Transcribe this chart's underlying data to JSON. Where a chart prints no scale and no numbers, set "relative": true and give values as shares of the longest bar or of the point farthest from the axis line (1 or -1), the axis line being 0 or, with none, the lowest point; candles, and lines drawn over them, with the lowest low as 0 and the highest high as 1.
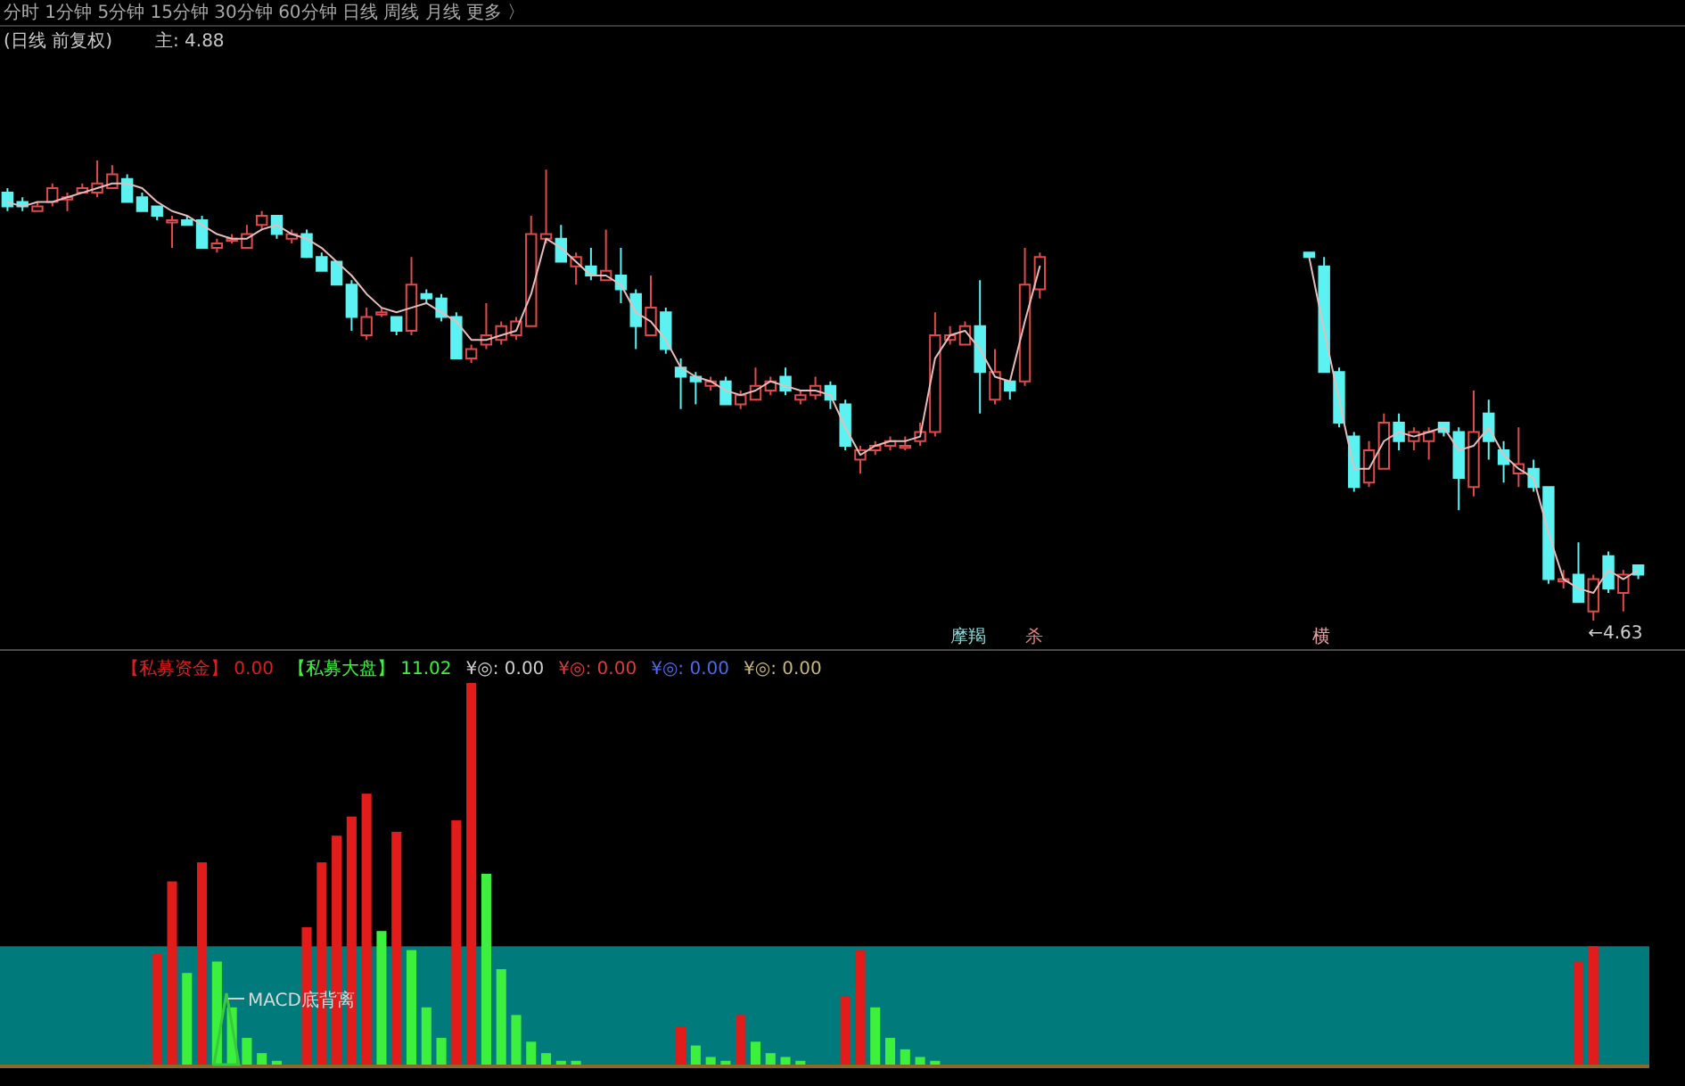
{
  "chart_data": [
    {
      "type": "candlestick",
      "title": "(日线 前复权)",
      "relative": true,
      "categories": [
        null,
        null,
        null,
        null,
        null,
        null,
        null,
        null,
        null,
        null,
        null,
        null,
        null,
        null,
        null,
        null,
        null,
        null,
        null,
        null,
        null,
        null,
        null,
        null,
        null,
        null,
        null,
        null,
        null,
        null,
        null,
        null,
        null,
        null,
        null,
        null,
        null,
        null,
        null,
        null,
        null,
        null,
        null,
        null,
        null,
        null,
        null,
        null,
        null,
        null,
        null,
        null,
        null,
        null,
        null,
        null,
        null,
        null,
        null,
        null,
        null,
        null,
        null,
        null,
        null,
        null,
        null,
        null,
        null,
        null,
        null,
        null,
        null,
        null,
        null,
        null,
        null,
        null,
        null,
        null,
        null,
        null,
        null,
        null,
        null,
        null,
        null,
        null,
        null,
        null,
        null,
        null,
        null,
        null,
        null,
        null,
        null,
        null,
        null,
        null,
        null,
        null,
        null,
        null,
        null,
        null,
        null,
        null,
        null,
        null
      ],
      "ohlc": [
        [
          0.93,
          0.94,
          0.89,
          0.9
        ],
        [
          0.91,
          0.92,
          0.89,
          0.9
        ],
        [
          0.89,
          0.91,
          0.89,
          0.9
        ],
        [
          0.91,
          0.95,
          0.9,
          0.94
        ],
        [
          0.92,
          0.93,
          0.89,
          0.92
        ],
        [
          0.93,
          0.95,
          0.93,
          0.94
        ],
        [
          0.93,
          1,
          0.92,
          0.95
        ],
        [
          0.94,
          0.99,
          0.94,
          0.97
        ],
        [
          0.96,
          0.97,
          0.91,
          0.91
        ],
        [
          0.92,
          0.93,
          0.89,
          0.89
        ],
        [
          0.9,
          0.9,
          0.87,
          0.88
        ],
        [
          0.87,
          0.88,
          0.81,
          0.87
        ],
        [
          0.87,
          0.88,
          0.86,
          0.86
        ],
        [
          0.87,
          0.88,
          0.81,
          0.81
        ],
        [
          0.81,
          0.83,
          0.8,
          0.82
        ],
        [
          0.83,
          0.84,
          0.82,
          0.83
        ],
        [
          0.81,
          0.86,
          0.81,
          0.84
        ],
        [
          0.86,
          0.89,
          0.85,
          0.88
        ],
        [
          0.88,
          0.88,
          0.83,
          0.84
        ],
        [
          0.83,
          0.85,
          0.82,
          0.84
        ],
        [
          0.84,
          0.85,
          0.79,
          0.79
        ],
        [
          0.79,
          0.8,
          0.76,
          0.76
        ],
        [
          0.78,
          0.78,
          0.73,
          0.73
        ],
        [
          0.73,
          0.74,
          0.63,
          0.66
        ],
        [
          0.62,
          0.68,
          0.61,
          0.66
        ],
        [
          0.67,
          0.68,
          0.66,
          0.67
        ],
        [
          0.66,
          0.66,
          0.62,
          0.63
        ],
        [
          0.63,
          0.79,
          0.62,
          0.73
        ],
        [
          0.71,
          0.72,
          0.69,
          0.7
        ],
        [
          0.7,
          0.71,
          0.65,
          0.66
        ],
        [
          0.66,
          0.67,
          0.57,
          0.57
        ],
        [
          0.57,
          0.6,
          0.56,
          0.59
        ],
        [
          0.6,
          0.69,
          0.59,
          0.62
        ],
        [
          0.61,
          0.65,
          0.6,
          0.64
        ],
        [
          0.62,
          0.66,
          0.61,
          0.65
        ],
        [
          0.64,
          0.88,
          0.64,
          0.84
        ],
        [
          0.83,
          0.98,
          0.82,
          0.84
        ],
        [
          0.83,
          0.86,
          0.78,
          0.78
        ],
        [
          0.77,
          0.8,
          0.73,
          0.79
        ],
        [
          0.77,
          0.81,
          0.74,
          0.75
        ],
        [
          0.74,
          0.85,
          0.74,
          0.76
        ],
        [
          0.75,
          0.81,
          0.69,
          0.72
        ],
        [
          0.71,
          0.72,
          0.59,
          0.64
        ],
        [
          0.62,
          0.75,
          0.62,
          0.68
        ],
        [
          0.67,
          0.68,
          0.58,
          0.59
        ],
        [
          0.55,
          0.57,
          0.46,
          0.53
        ],
        [
          0.53,
          0.54,
          0.47,
          0.52
        ],
        [
          0.51,
          0.53,
          0.5,
          0.52
        ],
        [
          0.52,
          0.53,
          0.47,
          0.47
        ],
        [
          0.47,
          0.5,
          0.46,
          0.49
        ],
        [
          0.48,
          0.55,
          0.48,
          0.51
        ],
        [
          0.5,
          0.53,
          0.49,
          0.52
        ],
        [
          0.53,
          0.55,
          0.49,
          0.5
        ],
        [
          0.48,
          0.5,
          0.47,
          0.49
        ],
        [
          0.49,
          0.53,
          0.48,
          0.51
        ],
        [
          0.51,
          0.52,
          0.46,
          0.48
        ],
        [
          0.47,
          0.48,
          0.37,
          0.38
        ],
        [
          0.35,
          0.38,
          0.32,
          0.37
        ],
        [
          0.37,
          0.39,
          0.36,
          0.38
        ],
        [
          0.38,
          0.4,
          0.37,
          0.39
        ],
        [
          0.38,
          0.4,
          0.37,
          0.38
        ],
        [
          0.39,
          0.43,
          0.38,
          0.41
        ],
        [
          0.41,
          0.67,
          0.4,
          0.62
        ],
        [
          0.61,
          0.64,
          0.6,
          0.62
        ],
        [
          0.6,
          0.65,
          0.6,
          0.64
        ],
        [
          0.64,
          0.74,
          0.45,
          0.54
        ],
        [
          0.48,
          0.59,
          0.47,
          0.54
        ],
        [
          0.52,
          0.52,
          0.48,
          0.5
        ],
        [
          0.52,
          0.81,
          0.51,
          0.73
        ],
        [
          0.72,
          0.8,
          0.7,
          0.79
        ],
        null,
        null,
        null,
        null,
        null,
        null,
        null,
        null,
        null,
        null,
        null,
        null,
        null,
        null,
        null,
        null,
        null,
        [
          0.8,
          0.8,
          0.79,
          0.79
        ],
        [
          0.77,
          0.79,
          0.54,
          0.54
        ],
        [
          0.54,
          0.55,
          0.42,
          0.43
        ],
        [
          0.4,
          0.41,
          0.28,
          0.29
        ],
        [
          0.3,
          0.39,
          0.29,
          0.37
        ],
        [
          0.33,
          0.45,
          0.33,
          0.43
        ],
        [
          0.43,
          0.45,
          0.37,
          0.39
        ],
        [
          0.39,
          0.42,
          0.37,
          0.41
        ],
        [
          0.39,
          0.42,
          0.35,
          0.41
        ],
        [
          0.43,
          0.43,
          0.4,
          0.41
        ],
        [
          0.41,
          0.42,
          0.24,
          0.31
        ],
        [
          0.29,
          0.5,
          0.27,
          0.41
        ],
        [
          0.45,
          0.48,
          0.35,
          0.39
        ],
        [
          0.37,
          0.39,
          0.3,
          0.34
        ],
        [
          0.32,
          0.42,
          0.29,
          0.34
        ],
        [
          0.33,
          0.35,
          0.28,
          0.29
        ],
        [
          0.29,
          0.29,
          0.08,
          0.09
        ],
        [
          0.09,
          0.11,
          0.07,
          0.09
        ],
        [
          0.1,
          0.17,
          0.04,
          0.04
        ],
        [
          0.02,
          0.1,
          0,
          0.09
        ],
        [
          0.14,
          0.15,
          0.06,
          0.07
        ],
        [
          0.06,
          0.11,
          0.02,
          0.1
        ],
        [
          0.12,
          0.12,
          0.09,
          0.1
        ]
      ],
      "series": [
        {
          "type": "line",
          "color": "#e6bcbc",
          "values": [
            0.91,
            0.9,
            0.91,
            0.91,
            0.92,
            0.93,
            0.94,
            0.95,
            0.95,
            0.94,
            0.91,
            0.89,
            0.88,
            0.86,
            0.84,
            0.83,
            0.83,
            0.85,
            0.86,
            0.84,
            0.83,
            0.81,
            0.78,
            0.75,
            0.71,
            0.68,
            0.67,
            0.68,
            0.69,
            0.67,
            0.65,
            0.61,
            0.61,
            0.62,
            0.63,
            0.71,
            0.83,
            0.81,
            0.78,
            0.75,
            0.75,
            0.73,
            0.67,
            0.65,
            0.61,
            0.55,
            0.53,
            0.52,
            0.5,
            0.49,
            0.5,
            0.52,
            0.51,
            0.5,
            0.5,
            0.49,
            0.42,
            0.36,
            0.38,
            0.39,
            0.39,
            0.4,
            0.57,
            0.62,
            0.63,
            0.59,
            0.53,
            0.52,
            0.65,
            0.77,
            null,
            null,
            null,
            null,
            null,
            null,
            null,
            null,
            null,
            null,
            null,
            null,
            null,
            null,
            null,
            null,
            null,
            0.79,
            0.63,
            0.48,
            0.33,
            0.33,
            0.39,
            0.41,
            0.4,
            0.41,
            0.42,
            0.37,
            0.38,
            0.42,
            0.36,
            0.33,
            0.31,
            0.19,
            0.09,
            0.07,
            0.06,
            0.11,
            0.09,
            0.11
          ]
        }
      ],
      "annotations": [
        "分时 1分钟 5分钟 15分钟 30分钟 60分钟 日线 周线 月线 更多 〉",
        "主: 4.88",
        "摩羯",
        "杀",
        "横",
        "←4.63"
      ]
    },
    {
      "type": "bar",
      "relative": true,
      "categories": [
        null,
        null,
        null,
        null,
        null,
        null,
        null,
        null,
        null,
        null,
        null,
        null,
        null,
        null,
        null,
        null,
        null,
        null,
        null,
        null,
        null,
        null,
        null,
        null,
        null,
        null,
        null,
        null,
        null,
        null,
        null,
        null,
        null,
        null,
        null,
        null,
        null,
        null,
        null,
        null,
        null,
        null,
        null,
        null,
        null,
        null,
        null,
        null,
        null,
        null,
        null,
        null,
        null,
        null,
        null,
        null,
        null,
        null,
        null,
        null,
        null,
        null,
        null,
        null,
        null,
        null,
        null,
        null,
        null,
        null,
        null,
        null,
        null,
        null,
        null,
        null,
        null,
        null,
        null,
        null,
        null,
        null,
        null,
        null,
        null,
        null,
        null,
        null,
        null,
        null,
        null,
        null,
        null,
        null,
        null,
        null,
        null,
        null,
        null,
        null,
        null,
        null,
        null,
        null,
        null,
        null,
        null,
        null,
        null,
        null
      ],
      "series": [
        {
          "name": "【私募资金】 0.00",
          "color": "#e21b1b",
          "values": [
            null,
            null,
            null,
            null,
            null,
            null,
            null,
            null,
            null,
            null,
            0.29,
            0.48,
            null,
            0.53,
            null,
            null,
            null,
            null,
            null,
            null,
            0.36,
            0.53,
            0.6,
            0.65,
            0.71,
            null,
            0.61,
            null,
            null,
            null,
            0.64,
            1,
            null,
            null,
            null,
            null,
            null,
            null,
            null,
            null,
            null,
            null,
            null,
            null,
            null,
            0.1,
            null,
            null,
            null,
            0.13,
            null,
            null,
            null,
            null,
            null,
            null,
            0.18,
            0.3,
            null,
            null,
            null,
            null,
            null,
            null,
            null,
            null,
            null,
            null,
            null,
            null,
            null,
            null,
            null,
            null,
            null,
            null,
            null,
            null,
            null,
            null,
            null,
            null,
            null,
            null,
            null,
            null,
            null,
            null,
            null,
            null,
            null,
            null,
            null,
            null,
            null,
            null,
            null,
            null,
            null,
            null,
            null,
            null,
            null,
            null,
            null,
            0.27,
            0.31,
            null,
            null,
            null
          ]
        },
        {
          "name": "【私募大盘】 11.02",
          "color": "#3ef03e",
          "values": [
            null,
            null,
            null,
            null,
            null,
            null,
            null,
            null,
            null,
            null,
            null,
            null,
            0.24,
            null,
            0.27,
            0.15,
            0.07,
            0.03,
            0.01,
            null,
            null,
            null,
            null,
            null,
            null,
            0.35,
            null,
            0.3,
            0.15,
            0.07,
            null,
            null,
            0.5,
            0.25,
            0.13,
            0.06,
            0.03,
            0.01,
            0.01,
            null,
            null,
            null,
            null,
            null,
            null,
            null,
            0.05,
            0.02,
            0.01,
            null,
            0.06,
            0.03,
            0.02,
            0.01,
            null,
            null,
            null,
            null,
            0.15,
            0.07,
            0.04,
            0.02,
            0.01,
            null,
            null,
            null,
            null,
            null,
            null,
            null,
            null,
            null,
            null,
            null,
            null,
            null,
            null,
            null,
            null,
            null,
            null,
            null,
            null,
            null,
            null,
            null,
            null,
            null,
            null,
            null,
            null,
            null,
            null,
            null,
            null,
            null,
            null,
            null,
            null,
            null,
            null,
            null,
            null,
            null,
            null,
            null,
            null,
            null,
            null,
            null
          ]
        }
      ],
      "bands": [
        {
          "axis": "y",
          "from": 0,
          "to": 0.31,
          "color": "#007a7a"
        }
      ],
      "legend": "top left",
      "annotations": [
        "¥◎: 0.00",
        "¥◎: 0.00",
        "¥◎: 0.00",
        "¥◎: 0.00",
        "MACD底背离"
      ]
    }
  ]
}
